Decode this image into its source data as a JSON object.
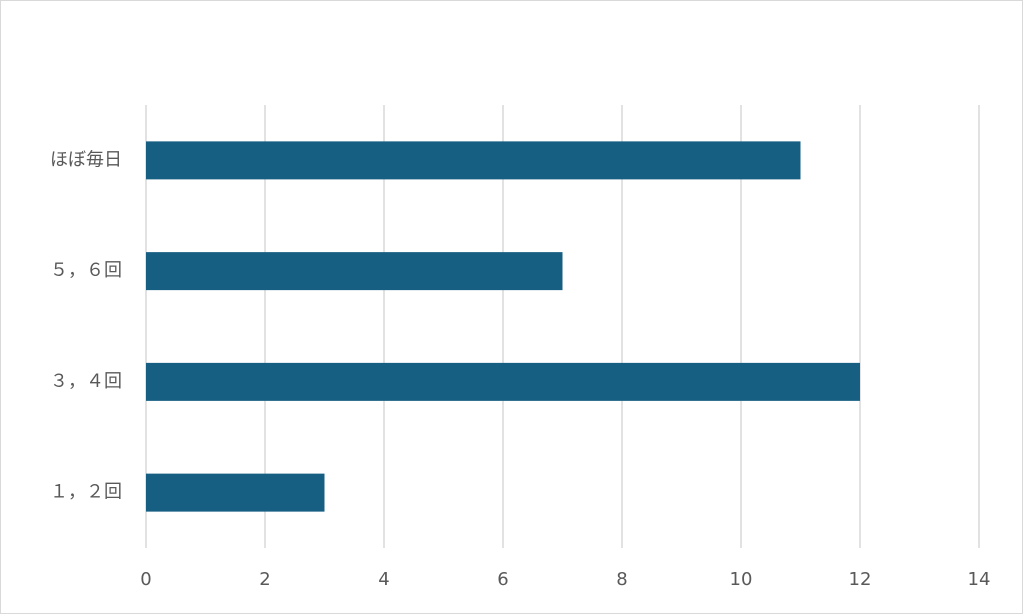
{
  "chart_data": {
    "type": "bar",
    "orientation": "horizontal",
    "categories": [
      "ほぼ毎日",
      "５，６回",
      "３，４回",
      "１，２回"
    ],
    "values": [
      11,
      7,
      12,
      3
    ],
    "color": "#175f82",
    "xlim": [
      0,
      14
    ],
    "xticks": [
      0,
      2,
      4,
      6,
      8,
      10,
      12,
      14
    ],
    "grid": true
  }
}
